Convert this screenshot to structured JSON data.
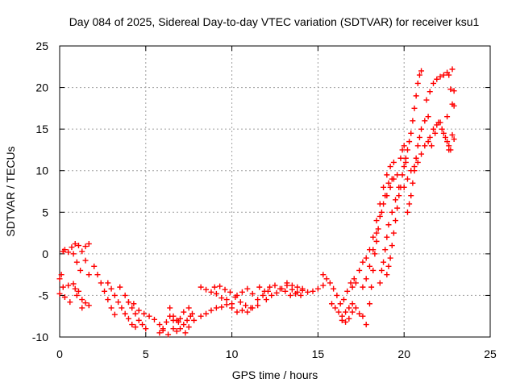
{
  "chart_data": {
    "type": "scatter",
    "title": "Day 084 of 2025, Sidereal Day-to-day VTEC variation (SDTVAR) for receiver ksu1",
    "xlabel": "GPS time / hours",
    "ylabel": "SDTVAR / TECUs",
    "xlim": [
      0,
      25
    ],
    "ylim": [
      -10,
      25
    ],
    "x_ticks": [
      0,
      5,
      10,
      15,
      20,
      25
    ],
    "y_ticks": [
      -10,
      -5,
      0,
      5,
      10,
      15,
      20,
      25
    ],
    "grid": true,
    "marker": "+",
    "series_color": "#ff0000",
    "series": [
      {
        "name": "SDTVAR",
        "points": [
          [
            0.0,
            -3.0
          ],
          [
            0.1,
            -2.5
          ],
          [
            0.2,
            0.3
          ],
          [
            0.3,
            0.5
          ],
          [
            0.5,
            0.2
          ],
          [
            0.7,
            0.8
          ],
          [
            0.9,
            1.2
          ],
          [
            1.1,
            1.0
          ],
          [
            1.3,
            0.3
          ],
          [
            1.5,
            0.9
          ],
          [
            1.7,
            1.2
          ],
          [
            0.0,
            -4.8
          ],
          [
            0.3,
            -5.2
          ],
          [
            0.6,
            -5.8
          ],
          [
            0.9,
            -4.2
          ],
          [
            1.1,
            -4.5
          ],
          [
            1.3,
            -5.5
          ],
          [
            1.5,
            -5.9
          ],
          [
            1.7,
            -6.2
          ],
          [
            0.2,
            -4.0
          ],
          [
            0.5,
            -3.8
          ],
          [
            0.8,
            -3.6
          ],
          [
            1.0,
            -5.0
          ],
          [
            1.3,
            -6.5
          ],
          [
            0.8,
            0.0
          ],
          [
            1.0,
            -1.0
          ],
          [
            1.2,
            -2.0
          ],
          [
            1.5,
            -0.8
          ],
          [
            1.7,
            -2.5
          ],
          [
            2.0,
            -1.5
          ],
          [
            2.2,
            -2.5
          ],
          [
            2.4,
            -3.5
          ],
          [
            2.6,
            -4.5
          ],
          [
            2.8,
            -5.5
          ],
          [
            3.0,
            -6.5
          ],
          [
            3.2,
            -7.3
          ],
          [
            2.8,
            -3.5
          ],
          [
            3.0,
            -4.2
          ],
          [
            3.2,
            -5.0
          ],
          [
            3.4,
            -5.8
          ],
          [
            3.6,
            -6.5
          ],
          [
            3.8,
            -7.2
          ],
          [
            4.0,
            -7.8
          ],
          [
            4.2,
            -8.5
          ],
          [
            4.4,
            -8.8
          ],
          [
            3.5,
            -4.0
          ],
          [
            3.8,
            -5.0
          ],
          [
            4.0,
            -5.8
          ],
          [
            4.2,
            -6.5
          ],
          [
            4.4,
            -7.2
          ],
          [
            4.6,
            -8.0
          ],
          [
            4.8,
            -8.5
          ],
          [
            5.0,
            -9.0
          ],
          [
            4.0,
            -5.8
          ],
          [
            4.3,
            -6.0
          ],
          [
            4.6,
            -6.8
          ],
          [
            4.9,
            -7.2
          ],
          [
            5.2,
            -7.5
          ],
          [
            5.5,
            -7.9
          ],
          [
            5.8,
            -8.5
          ],
          [
            6.0,
            -9.0
          ],
          [
            6.2,
            -8.2
          ],
          [
            6.4,
            -7.5
          ],
          [
            6.6,
            -8.0
          ],
          [
            6.8,
            -9.3
          ],
          [
            7.0,
            -9.0
          ],
          [
            7.2,
            -8.5
          ],
          [
            7.4,
            -8.0
          ],
          [
            7.6,
            -7.5
          ],
          [
            7.8,
            -8.0
          ],
          [
            5.8,
            -9.5
          ],
          [
            6.0,
            -9.2
          ],
          [
            6.3,
            -9.7
          ],
          [
            6.6,
            -9.0
          ],
          [
            6.9,
            -8.2
          ],
          [
            7.2,
            -7.0
          ],
          [
            7.5,
            -6.5
          ],
          [
            7.7,
            -7.2
          ],
          [
            6.4,
            -6.5
          ],
          [
            6.6,
            -7.5
          ],
          [
            6.8,
            -8.0
          ],
          [
            7.0,
            -7.8
          ],
          [
            7.3,
            -9.5
          ],
          [
            7.5,
            -8.8
          ],
          [
            8.2,
            -7.5
          ],
          [
            8.5,
            -7.2
          ],
          [
            8.8,
            -6.8
          ],
          [
            9.1,
            -6.5
          ],
          [
            9.4,
            -6.4
          ],
          [
            9.7,
            -6.1
          ],
          [
            10.0,
            -6.0
          ],
          [
            8.2,
            -4.0
          ],
          [
            8.5,
            -4.3
          ],
          [
            8.8,
            -4.6
          ],
          [
            9.1,
            -4.8
          ],
          [
            9.4,
            -5.3
          ],
          [
            9.7,
            -5.5
          ],
          [
            9.0,
            -4.0
          ],
          [
            9.3,
            -3.9
          ],
          [
            9.6,
            -4.3
          ],
          [
            9.9,
            -4.6
          ],
          [
            10.2,
            -5.2
          ],
          [
            10.5,
            -5.8
          ],
          [
            10.8,
            -6.2
          ],
          [
            11.1,
            -6.5
          ],
          [
            10.0,
            -6.5
          ],
          [
            10.3,
            -7.0
          ],
          [
            10.6,
            -6.8
          ],
          [
            10.9,
            -7.0
          ],
          [
            11.2,
            -6.5
          ],
          [
            11.5,
            -6.2
          ],
          [
            10.3,
            -5.0
          ],
          [
            10.6,
            -4.6
          ],
          [
            10.9,
            -4.2
          ],
          [
            11.2,
            -4.8
          ],
          [
            11.5,
            -5.5
          ],
          [
            11.8,
            -5.0
          ],
          [
            12.1,
            -4.5
          ],
          [
            11.6,
            -4.0
          ],
          [
            11.9,
            -4.5
          ],
          [
            12.2,
            -4.0
          ],
          [
            12.5,
            -3.8
          ],
          [
            12.8,
            -4.2
          ],
          [
            13.1,
            -4.5
          ],
          [
            13.4,
            -5.0
          ],
          [
            13.7,
            -4.8
          ],
          [
            14.0,
            -5.0
          ],
          [
            12.0,
            -5.5
          ],
          [
            12.3,
            -5.0
          ],
          [
            12.6,
            -4.7
          ],
          [
            12.9,
            -4.2
          ],
          [
            13.2,
            -3.8
          ],
          [
            13.5,
            -4.3
          ],
          [
            13.8,
            -4.6
          ],
          [
            14.1,
            -4.2
          ],
          [
            13.2,
            -3.5
          ],
          [
            13.5,
            -3.8
          ],
          [
            13.8,
            -4.0
          ],
          [
            14.1,
            -4.4
          ],
          [
            14.4,
            -4.6
          ],
          [
            14.7,
            -4.5
          ],
          [
            15.0,
            -4.2
          ],
          [
            15.3,
            -3.8
          ],
          [
            15.3,
            -2.5
          ],
          [
            15.5,
            -3.0
          ],
          [
            15.7,
            -3.5
          ],
          [
            15.9,
            -4.2
          ],
          [
            16.1,
            -5.0
          ],
          [
            16.3,
            -6.0
          ],
          [
            16.5,
            -5.5
          ],
          [
            16.7,
            -4.5
          ],
          [
            16.9,
            -3.5
          ],
          [
            17.1,
            -3.0
          ],
          [
            15.8,
            -6.0
          ],
          [
            16.0,
            -6.5
          ],
          [
            16.2,
            -7.0
          ],
          [
            16.4,
            -7.5
          ],
          [
            16.6,
            -7.0
          ],
          [
            16.8,
            -6.5
          ],
          [
            17.0,
            -6.0
          ],
          [
            17.2,
            -6.5
          ],
          [
            17.4,
            -7.2
          ],
          [
            17.6,
            -7.5
          ],
          [
            17.8,
            -8.5
          ],
          [
            16.4,
            -8.0
          ],
          [
            16.6,
            -8.2
          ],
          [
            16.8,
            -7.8
          ],
          [
            17.0,
            -7.0
          ],
          [
            17.0,
            -4.0
          ],
          [
            17.2,
            -3.5
          ],
          [
            17.4,
            -2.0
          ],
          [
            17.6,
            -1.0
          ],
          [
            17.8,
            -0.5
          ],
          [
            18.0,
            0.5
          ],
          [
            18.2,
            2.0
          ],
          [
            18.4,
            4.0
          ],
          [
            18.6,
            6.0
          ],
          [
            18.8,
            8.0
          ],
          [
            19.0,
            9.5
          ],
          [
            19.2,
            10.5
          ],
          [
            19.4,
            11.0
          ],
          [
            17.6,
            -4.0
          ],
          [
            17.8,
            -3.0
          ],
          [
            18.0,
            -1.5
          ],
          [
            18.2,
            0.5
          ],
          [
            18.4,
            2.5
          ],
          [
            18.6,
            4.5
          ],
          [
            18.8,
            6.0
          ],
          [
            19.0,
            7.0
          ],
          [
            19.2,
            8.0
          ],
          [
            19.4,
            9.0
          ],
          [
            19.6,
            9.5
          ],
          [
            18.0,
            -6.0
          ],
          [
            18.1,
            -4.0
          ],
          [
            18.2,
            -2.0
          ],
          [
            18.3,
            0.0
          ],
          [
            18.4,
            1.5
          ],
          [
            18.5,
            3.0
          ],
          [
            18.7,
            5.0
          ],
          [
            18.9,
            7.0
          ],
          [
            19.1,
            8.5
          ],
          [
            19.3,
            9.0
          ],
          [
            18.6,
            -3.5
          ],
          [
            18.7,
            -2.0
          ],
          [
            18.8,
            -1.0
          ],
          [
            18.9,
            0.5
          ],
          [
            19.0,
            2.0
          ],
          [
            19.1,
            3.5
          ],
          [
            19.3,
            5.0
          ],
          [
            19.5,
            6.5
          ],
          [
            19.7,
            8.0
          ],
          [
            19.9,
            9.5
          ],
          [
            20.1,
            11.0
          ],
          [
            19.0,
            -2.5
          ],
          [
            19.1,
            -1.5
          ],
          [
            19.2,
            -0.5
          ],
          [
            19.3,
            1.0
          ],
          [
            19.4,
            2.5
          ],
          [
            19.5,
            4.0
          ],
          [
            19.6,
            5.5
          ],
          [
            19.7,
            7.0
          ],
          [
            19.8,
            8.0
          ],
          [
            19.8,
            11.5
          ],
          [
            19.9,
            12.5
          ],
          [
            20.0,
            13.0
          ],
          [
            20.0,
            10.5
          ],
          [
            20.1,
            11.5
          ],
          [
            20.2,
            12.5
          ],
          [
            20.3,
            13.5
          ],
          [
            20.4,
            14.5
          ],
          [
            20.5,
            16.0
          ],
          [
            20.6,
            17.5
          ],
          [
            20.7,
            19.0
          ],
          [
            20.8,
            20.5
          ],
          [
            20.9,
            21.5
          ],
          [
            21.0,
            22.0
          ],
          [
            20.2,
            5.0
          ],
          [
            20.3,
            6.0
          ],
          [
            20.4,
            7.0
          ],
          [
            20.5,
            8.5
          ],
          [
            20.6,
            10.0
          ],
          [
            20.7,
            11.5
          ],
          [
            20.8,
            13.0
          ],
          [
            20.9,
            14.0
          ],
          [
            21.0,
            15.0
          ],
          [
            21.2,
            16.0
          ],
          [
            21.4,
            16.5
          ],
          [
            20.0,
            8.0
          ],
          [
            20.2,
            9.0
          ],
          [
            20.4,
            10.0
          ],
          [
            20.6,
            10.5
          ],
          [
            20.8,
            11.0
          ],
          [
            21.0,
            12.0
          ],
          [
            21.2,
            13.0
          ],
          [
            21.4,
            13.5
          ],
          [
            21.3,
            18.5
          ],
          [
            21.5,
            19.5
          ],
          [
            21.7,
            20.5
          ],
          [
            21.9,
            21.0
          ],
          [
            22.1,
            21.3
          ],
          [
            22.3,
            21.5
          ],
          [
            22.5,
            21.8
          ],
          [
            21.5,
            14.0
          ],
          [
            21.7,
            15.0
          ],
          [
            21.9,
            15.5
          ],
          [
            22.1,
            15.8
          ],
          [
            22.3,
            14.5
          ],
          [
            22.5,
            13.5
          ],
          [
            22.7,
            12.5
          ],
          [
            21.6,
            13.0
          ],
          [
            21.8,
            14.5
          ],
          [
            22.0,
            15.8
          ],
          [
            22.2,
            15.0
          ],
          [
            22.4,
            14.0
          ],
          [
            22.6,
            13.0
          ],
          [
            22.6,
            21.5
          ],
          [
            22.8,
            22.2
          ],
          [
            22.7,
            19.8
          ],
          [
            22.9,
            19.6
          ],
          [
            22.8,
            18.0
          ],
          [
            22.9,
            17.8
          ],
          [
            22.8,
            14.3
          ],
          [
            22.9,
            13.8
          ],
          [
            22.6,
            12.5
          ],
          [
            22.5,
            16.5
          ]
        ]
      }
    ]
  }
}
